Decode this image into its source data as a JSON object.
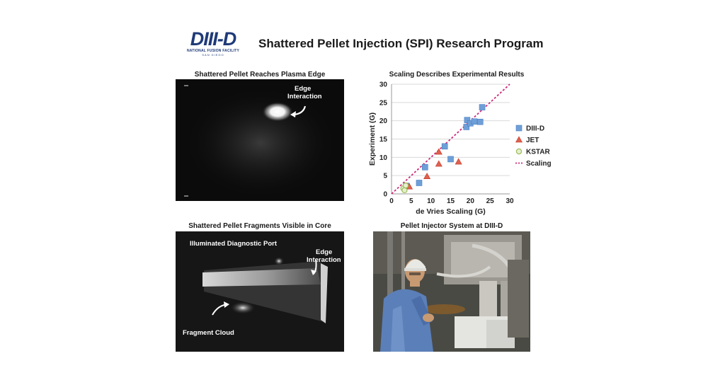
{
  "logo": {
    "name": "DIII-D",
    "line1": "NATIONAL FUSION FACILITY",
    "line2": "SAN DIEGO"
  },
  "title": "Shattered Pellet Injection (SPI) Research Program",
  "panels": {
    "plasma_edge": {
      "title": "Shattered Pellet Reaches Plasma Edge",
      "annotation_line1": "Edge",
      "annotation_line2": "Interaction"
    },
    "scaling": {
      "title": "Scaling Describes Experimental Results"
    },
    "core": {
      "title": "Shattered Pellet Fragments Visible in Core",
      "port_label": "Illuminated Diagnostic Port",
      "edge_line1": "Edge",
      "edge_line2": "Interaction",
      "cloud_label": "Fragment Cloud"
    },
    "injector": {
      "title": "Pellet Injector System at DIII-D"
    }
  },
  "chart_data": {
    "type": "scatter",
    "title": "Scaling Describes Experimental Results",
    "xlabel": "de Vries Scaling (G)",
    "ylabel": "Experiment (G)",
    "xlim": [
      0,
      30
    ],
    "ylim": [
      0,
      30
    ],
    "xticks": [
      0,
      5,
      10,
      15,
      20,
      25,
      30
    ],
    "yticks": [
      0,
      5,
      10,
      15,
      20,
      25,
      30
    ],
    "grid": "horizontal",
    "legend_position": "right",
    "series": [
      {
        "name": "DIII-D",
        "marker": "square",
        "color": "#6f9fd8",
        "points": [
          [
            3.8,
            2.2
          ],
          [
            7.0,
            3.0
          ],
          [
            8.5,
            7.3
          ],
          [
            13.5,
            13.0
          ],
          [
            15.0,
            9.5
          ],
          [
            19.0,
            18.3
          ],
          [
            19.2,
            20.2
          ],
          [
            20.0,
            19.3
          ],
          [
            21.0,
            19.8
          ],
          [
            22.5,
            19.7
          ],
          [
            23.0,
            23.7
          ]
        ]
      },
      {
        "name": "JET",
        "marker": "triangle",
        "color": "#e0604f",
        "points": [
          [
            4.5,
            2.0
          ],
          [
            9.0,
            4.8
          ],
          [
            12.0,
            8.2
          ],
          [
            12.0,
            11.5
          ],
          [
            17.0,
            8.8
          ]
        ]
      },
      {
        "name": "KSTAR",
        "marker": "circle",
        "color": "#9bbb59",
        "points": [
          [
            3.0,
            1.5
          ],
          [
            3.3,
            1.0
          ],
          [
            3.6,
            2.3
          ]
        ]
      },
      {
        "name": "Scaling",
        "marker": "dashed-line",
        "color": "#cc2a7a",
        "points": [
          [
            0,
            0
          ],
          [
            30,
            30
          ]
        ]
      }
    ]
  }
}
